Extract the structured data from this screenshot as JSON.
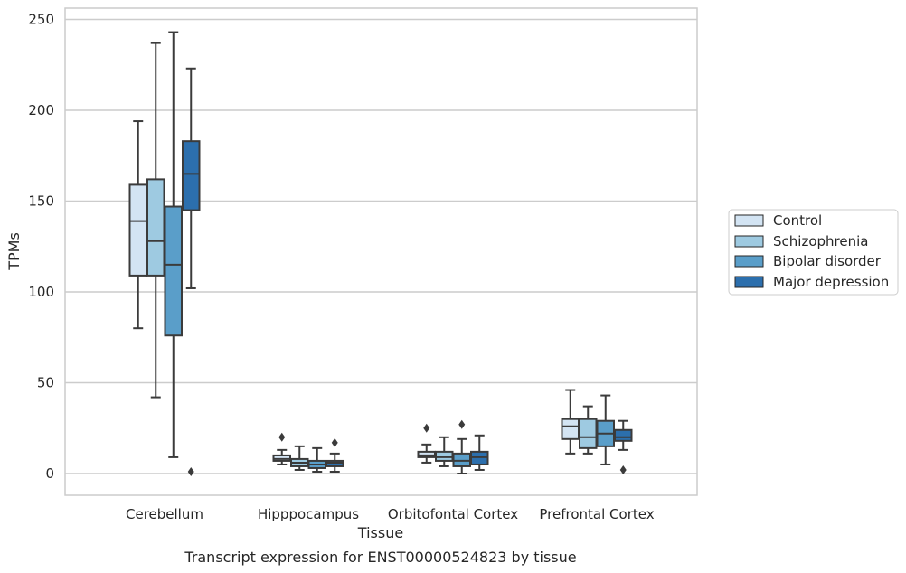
{
  "chart_data": {
    "type": "box",
    "xlabel": "Tissue",
    "ylabel": "TPMs",
    "caption": "Transcript expression for ENST00000524823 by tissue",
    "ylim": [
      -12,
      256
    ],
    "yticks": [
      0,
      50,
      100,
      150,
      200,
      250
    ],
    "grid": true,
    "legend_position": "right",
    "categories": [
      "Cerebellum",
      "Hipppocampus",
      "Orbitofontal Cortex",
      "Prefrontal Cortex"
    ],
    "series": [
      {
        "name": "Control",
        "color": "#d3e4f3",
        "boxes": [
          {
            "whisker_low": 80,
            "q1": 109,
            "median": 139,
            "q3": 159,
            "whisker_high": 194,
            "outliers": []
          },
          {
            "whisker_low": 5,
            "q1": 7,
            "median": 8,
            "q3": 10,
            "whisker_high": 13,
            "outliers": [
              20
            ]
          },
          {
            "whisker_low": 6,
            "q1": 9,
            "median": 10,
            "q3": 12,
            "whisker_high": 16,
            "outliers": [
              25
            ]
          },
          {
            "whisker_low": 11,
            "q1": 19,
            "median": 26,
            "q3": 30,
            "whisker_high": 46,
            "outliers": []
          }
        ]
      },
      {
        "name": "Schizophrenia",
        "color": "#9ecae1",
        "boxes": [
          {
            "whisker_low": 42,
            "q1": 109,
            "median": 128,
            "q3": 162,
            "whisker_high": 237,
            "outliers": []
          },
          {
            "whisker_low": 2,
            "q1": 4,
            "median": 6,
            "q3": 8,
            "whisker_high": 15,
            "outliers": []
          },
          {
            "whisker_low": 4,
            "q1": 7,
            "median": 9,
            "q3": 12,
            "whisker_high": 20,
            "outliers": []
          },
          {
            "whisker_low": 11,
            "q1": 14,
            "median": 20,
            "q3": 30,
            "whisker_high": 37,
            "outliers": []
          }
        ]
      },
      {
        "name": "Bipolar disorder",
        "color": "#5a9ec9",
        "boxes": [
          {
            "whisker_low": 9,
            "q1": 76,
            "median": 115,
            "q3": 147,
            "whisker_high": 243,
            "outliers": []
          },
          {
            "whisker_low": 1,
            "q1": 3,
            "median": 5,
            "q3": 7,
            "whisker_high": 14,
            "outliers": []
          },
          {
            "whisker_low": 0,
            "q1": 4,
            "median": 7,
            "q3": 11,
            "whisker_high": 19,
            "outliers": [
              27
            ]
          },
          {
            "whisker_low": 5,
            "q1": 15,
            "median": 22,
            "q3": 29,
            "whisker_high": 43,
            "outliers": []
          }
        ]
      },
      {
        "name": "Major depression",
        "color": "#2c6fad",
        "boxes": [
          {
            "whisker_low": 102,
            "q1": 145,
            "median": 165,
            "q3": 183,
            "whisker_high": 223,
            "outliers": [
              1
            ]
          },
          {
            "whisker_low": 1,
            "q1": 4,
            "median": 6,
            "q3": 7,
            "whisker_high": 11,
            "outliers": [
              17
            ]
          },
          {
            "whisker_low": 2,
            "q1": 5,
            "median": 9,
            "q3": 12,
            "whisker_high": 21,
            "outliers": []
          },
          {
            "whisker_low": 13,
            "q1": 18,
            "median": 20,
            "q3": 24,
            "whisker_high": 29,
            "outliers": [
              2
            ]
          }
        ]
      }
    ]
  }
}
